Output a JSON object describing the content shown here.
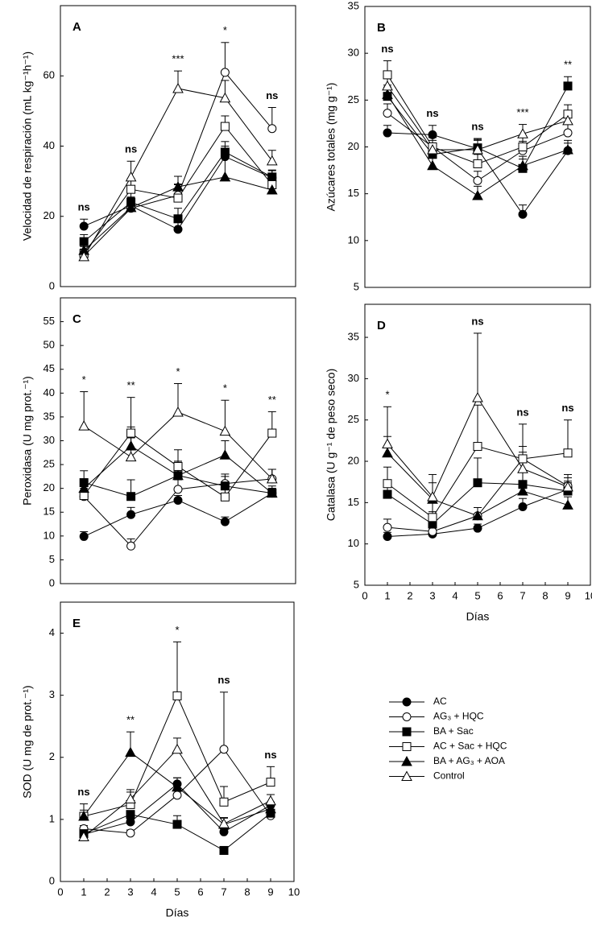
{
  "chart_data": [
    {
      "type": "line",
      "label": "A",
      "ylabel": "Velocidad de respiración (mL kg⁻¹h⁻¹)",
      "x": [
        1,
        3,
        5,
        7,
        9
      ],
      "xlim": [
        0,
        10
      ],
      "ylim": [
        0,
        80
      ],
      "yticks": [
        0,
        20,
        40,
        60
      ],
      "significance": [
        "ns",
        "ns",
        "***",
        "*",
        "ns"
      ],
      "series": [
        {
          "marker": "circle",
          "filled": true,
          "color": "#000000",
          "values": [
            17.2,
            23,
            16.3,
            37,
            31
          ],
          "errors": [
            2,
            2,
            2.5,
            3,
            2
          ]
        },
        {
          "marker": "circle",
          "filled": false,
          "color": "#000000",
          "values": [
            8.7,
            22.3,
            26,
            61,
            45
          ],
          "errors": [
            2,
            3,
            3,
            8.5,
            6
          ]
        },
        {
          "marker": "square",
          "filled": true,
          "color": "#000000",
          "values": [
            12.8,
            24,
            19.3,
            38.3,
            31.2
          ],
          "errors": [
            2,
            3,
            3,
            3,
            2
          ]
        },
        {
          "marker": "square",
          "filled": false,
          "color": "#000000",
          "values": [
            9.4,
            27.7,
            25.2,
            45.6,
            29
          ],
          "errors": [
            2,
            3,
            4,
            3,
            2
          ]
        },
        {
          "marker": "triangle",
          "filled": true,
          "color": "#000000",
          "values": [
            10.3,
            22.5,
            28.4,
            31.2,
            27.5
          ],
          "errors": [
            2,
            3,
            3,
            7,
            3
          ]
        },
        {
          "marker": "triangle",
          "filled": false,
          "color": "#000000",
          "values": [
            8.5,
            31.2,
            56.4,
            53.7,
            35.8
          ],
          "errors": [
            2,
            4.5,
            5,
            5,
            3
          ]
        }
      ]
    },
    {
      "type": "line",
      "label": "B",
      "ylabel": "Azúcares totales (mg g⁻¹)",
      "x": [
        1,
        3,
        5,
        7,
        9
      ],
      "xlim": [
        0,
        10
      ],
      "ylim": [
        5,
        35
      ],
      "yticks": [
        5,
        10,
        15,
        20,
        25,
        30,
        35
      ],
      "significance": [
        "ns",
        "ns",
        "ns",
        "***",
        "**"
      ],
      "series": [
        {
          "marker": "circle",
          "filled": true,
          "color": "#000000",
          "values": [
            21.5,
            21.3,
            19.8,
            12.8,
            19.6
          ],
          "errors": [
            0.8,
            1,
            1,
            1,
            0.8
          ]
        },
        {
          "marker": "circle",
          "filled": false,
          "color": "#000000",
          "values": [
            23.6,
            20,
            16.4,
            19.6,
            21.5
          ],
          "errors": [
            1,
            1,
            1,
            1,
            1
          ]
        },
        {
          "marker": "square",
          "filled": true,
          "color": "#000000",
          "values": [
            25.4,
            19.2,
            19.9,
            17.7,
            26.5
          ],
          "errors": [
            1,
            1,
            1,
            1,
            1
          ]
        },
        {
          "marker": "square",
          "filled": false,
          "color": "#000000",
          "values": [
            27.7,
            20,
            18.2,
            20,
            23.5
          ],
          "errors": [
            1.5,
            1,
            1,
            1,
            1
          ]
        },
        {
          "marker": "triangle",
          "filled": true,
          "color": "#000000",
          "values": [
            25.6,
            18,
            14.8,
            18,
            19.7
          ],
          "errors": [
            1,
            1,
            1,
            1,
            1
          ]
        },
        {
          "marker": "triangle",
          "filled": false,
          "color": "#000000",
          "values": [
            26.5,
            19.7,
            19.7,
            21.4,
            22.8
          ],
          "errors": [
            1.5,
            1,
            1,
            1,
            1
          ]
        }
      ]
    },
    {
      "type": "line",
      "label": "C",
      "ylabel": "Peroxidasa (U mg prot.⁻¹)",
      "x": [
        1,
        3,
        5,
        7,
        9
      ],
      "xlim": [
        0,
        10
      ],
      "ylim": [
        0,
        60
      ],
      "yticks": [
        0,
        5,
        10,
        15,
        20,
        25,
        30,
        35,
        40,
        45,
        50,
        55
      ],
      "significance": [
        "*",
        "**",
        "*",
        "*",
        "**"
      ],
      "series": [
        {
          "marker": "circle",
          "filled": true,
          "color": "#000000",
          "values": [
            9.9,
            14.5,
            17.5,
            13,
            19
          ],
          "errors": [
            1,
            1.5,
            1,
            1,
            1
          ]
        },
        {
          "marker": "circle",
          "filled": false,
          "color": "#000000",
          "values": [
            18.3,
            7.9,
            19.8,
            21,
            22
          ],
          "errors": [
            1,
            1.5,
            2,
            2,
            2
          ]
        },
        {
          "marker": "square",
          "filled": true,
          "color": "#000000",
          "values": [
            21.2,
            18.3,
            22.7,
            20.5,
            19
          ],
          "errors": [
            2.5,
            3.5,
            3,
            2,
            1
          ]
        },
        {
          "marker": "square",
          "filled": false,
          "color": "#000000",
          "values": [
            18.5,
            31.6,
            24.6,
            18.2,
            31.6
          ],
          "errors": [
            1.5,
            7.5,
            3.5,
            2,
            4.5
          ]
        },
        {
          "marker": "triangle",
          "filled": true,
          "color": "#000000",
          "values": [
            20,
            28.9,
            22.7,
            27,
            19
          ],
          "errors": [
            2,
            4,
            3,
            3,
            1.5
          ]
        },
        {
          "marker": "triangle",
          "filled": false,
          "color": "#000000",
          "values": [
            33.1,
            26.6,
            36,
            32,
            22
          ],
          "errors": [
            7.2,
            4,
            6,
            6.5,
            2
          ]
        }
      ]
    },
    {
      "type": "line",
      "label": "D",
      "ylabel": "Catalasa (U g⁻¹ de peso seco)",
      "xlabel": "Días",
      "x": [
        1,
        3,
        5,
        7,
        9
      ],
      "xlim": [
        0,
        10
      ],
      "xticks": [
        0,
        1,
        2,
        3,
        4,
        5,
        6,
        7,
        8,
        9,
        10
      ],
      "ylim": [
        5,
        39
      ],
      "yticks": [
        5,
        10,
        15,
        20,
        25,
        30,
        35
      ],
      "significance": [
        "*",
        null,
        "ns",
        "ns",
        "ns"
      ],
      "series": [
        {
          "marker": "circle",
          "filled": true,
          "color": "#000000",
          "values": [
            10.9,
            11.2,
            11.9,
            14.5,
            16.6
          ],
          "errors": [
            0.5,
            0.5,
            0.5,
            1,
            1
          ]
        },
        {
          "marker": "circle",
          "filled": false,
          "color": "#000000",
          "values": [
            12,
            11.5,
            13.4,
            20.3,
            17
          ],
          "errors": [
            1,
            0.5,
            1,
            1.5,
            1
          ]
        },
        {
          "marker": "square",
          "filled": true,
          "color": "#000000",
          "values": [
            16,
            12.4,
            17.4,
            17.2,
            16.4
          ],
          "errors": [
            1.5,
            1.5,
            3,
            1.5,
            1
          ]
        },
        {
          "marker": "square",
          "filled": false,
          "color": "#000000",
          "values": [
            17.3,
            13.2,
            21.8,
            20.3,
            21
          ],
          "errors": [
            2,
            2,
            5,
            4.2,
            4
          ]
        },
        {
          "marker": "triangle",
          "filled": true,
          "color": "#000000",
          "values": [
            21,
            15.4,
            13.4,
            16.4,
            14.7
          ],
          "errors": [
            2,
            2,
            1,
            1,
            1
          ]
        },
        {
          "marker": "triangle",
          "filled": false,
          "color": "#000000",
          "values": [
            22.1,
            15.7,
            27.7,
            19.1,
            16.9
          ],
          "errors": [
            4.5,
            2.7,
            7.8,
            2,
            1.5
          ]
        }
      ]
    },
    {
      "type": "line",
      "label": "E",
      "ylabel": "SOD (U mg de prot.⁻¹)",
      "xlabel": "Días",
      "x": [
        1,
        3,
        5,
        7,
        9
      ],
      "xlim": [
        0,
        10
      ],
      "xticks": [
        0,
        1,
        2,
        3,
        4,
        5,
        6,
        7,
        8,
        9,
        10
      ],
      "ylim": [
        0,
        4.5
      ],
      "yticks": [
        0,
        1,
        2,
        3,
        4
      ],
      "significance": [
        "ns",
        "**",
        "*",
        "ns",
        "ns"
      ],
      "series": [
        {
          "name": "AC",
          "marker": "circle",
          "filled": true,
          "color": "#000000",
          "values": [
            0.76,
            0.96,
            1.57,
            0.8,
            1.23
          ],
          "errors": [
            0.05,
            0.05,
            0.1,
            0.05,
            0.05
          ]
        },
        {
          "name": "AG₃ + HQC",
          "marker": "circle",
          "filled": false,
          "color": "#000000",
          "values": [
            0.85,
            0.78,
            1.39,
            2.13,
            1.06
          ],
          "errors": [
            0.05,
            0.05,
            0.1,
            0.92,
            0.05
          ]
        },
        {
          "name": "BA + Sac",
          "marker": "square",
          "filled": true,
          "color": "#000000",
          "values": [
            0.77,
            1.08,
            0.92,
            0.5,
            1.1
          ],
          "errors": [
            0.05,
            0.05,
            0.14,
            0.05,
            0.05
          ]
        },
        {
          "name": "AC + Sac + HQC",
          "marker": "square",
          "filled": false,
          "color": "#000000",
          "values": [
            1.05,
            1.24,
            2.99,
            1.28,
            1.6
          ],
          "errors": [
            0.2,
            0.2,
            0.87,
            0.25,
            0.25
          ]
        },
        {
          "name": "BA + AG₃ + AOA",
          "marker": "triangle",
          "filled": true,
          "color": "#000000",
          "values": [
            1.05,
            2.08,
            1.52,
            0.92,
            1.17
          ],
          "errors": [
            0.1,
            0.33,
            0.15,
            0.1,
            0.1
          ]
        },
        {
          "name": "Control",
          "marker": "triangle",
          "filled": false,
          "color": "#000000",
          "values": [
            0.72,
            1.33,
            2.13,
            0.93,
            1.3
          ],
          "errors": [
            0.05,
            0.15,
            0.18,
            0.1,
            0.1
          ]
        }
      ]
    }
  ]
}
